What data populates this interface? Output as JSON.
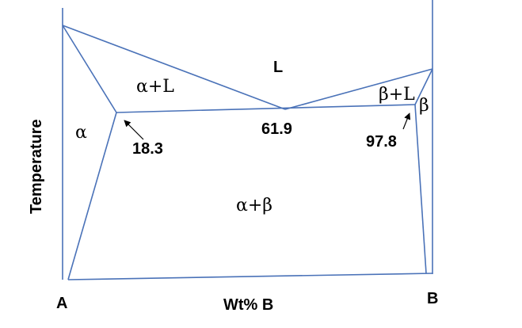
{
  "diagram": {
    "y_axis_label": "Temperature",
    "x_axis_label": "Wt% B",
    "component_left": "A",
    "component_right": "B",
    "regions": {
      "liquid": "L",
      "alpha": "α",
      "alpha_liquid": "α+L",
      "beta": "β",
      "beta_liquid": "β+L",
      "alpha_beta": "α+β"
    },
    "compositions": {
      "alpha_max_solubility": "18.3",
      "eutectic": "61.9",
      "beta_max_solubility": "97.8"
    },
    "colors": {
      "phase_lines": "#4a72b8",
      "text": "#000000",
      "background": "#ffffff"
    }
  }
}
